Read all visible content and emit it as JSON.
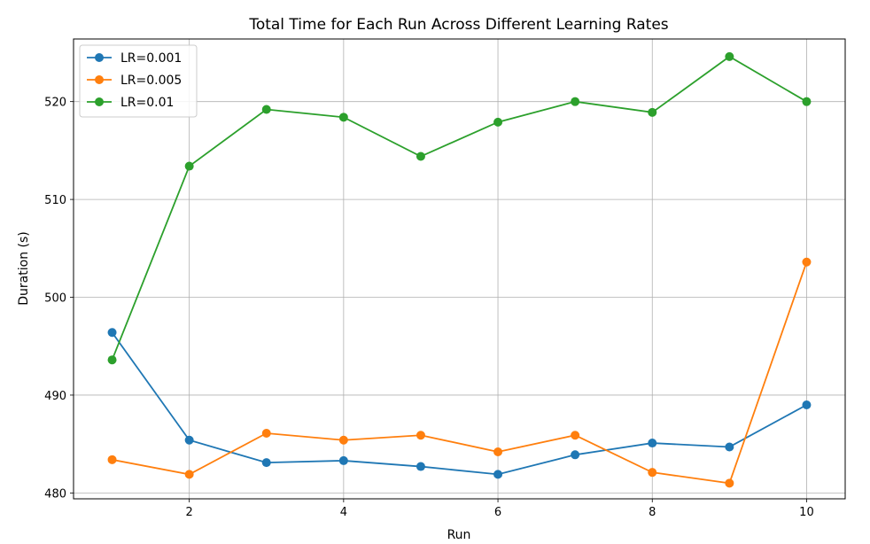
{
  "chart_data": {
    "type": "line",
    "title": "Total Time for Each Run Across Different Learning Rates",
    "xlabel": "Run",
    "ylabel": "Duration (s)",
    "x": [
      1,
      2,
      3,
      4,
      5,
      6,
      7,
      8,
      9,
      10
    ],
    "xlim": [
      0.5,
      10.5
    ],
    "ylim": [
      479.4,
      526.4
    ],
    "xticks": [
      2,
      4,
      6,
      8,
      10
    ],
    "yticks": [
      480,
      490,
      500,
      510,
      520
    ],
    "grid": true,
    "legend_position": "top-left",
    "series": [
      {
        "name": "LR=0.001",
        "color": "#1f77b4",
        "values": [
          496.4,
          485.4,
          483.1,
          483.3,
          482.7,
          481.9,
          483.9,
          485.1,
          484.7,
          489.0
        ]
      },
      {
        "name": "LR=0.005",
        "color": "#ff7f0e",
        "values": [
          483.4,
          481.9,
          486.1,
          485.4,
          485.9,
          484.2,
          485.9,
          482.1,
          481.0,
          503.6
        ]
      },
      {
        "name": "LR=0.01",
        "color": "#2ca02c",
        "values": [
          493.6,
          513.4,
          519.2,
          518.4,
          514.4,
          517.9,
          520.0,
          518.9,
          524.6,
          520.0
        ]
      }
    ]
  }
}
